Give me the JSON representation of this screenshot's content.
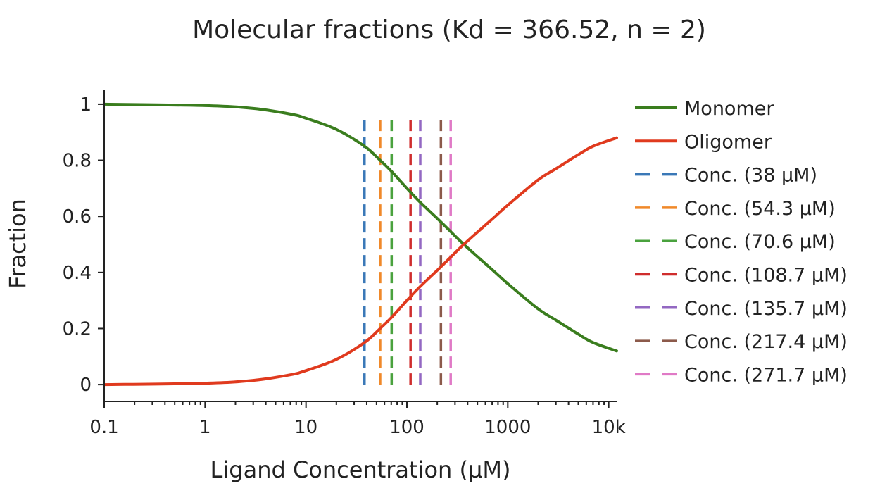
{
  "chart_data": {
    "type": "line",
    "title": "Molecular fractions (Kd = 366.52, n = 2)",
    "xlabel": "Ligand Concentration (μM)",
    "ylabel": "Fraction",
    "x_scale": "log",
    "xlim": [
      0.1,
      12000
    ],
    "ylim": [
      -0.06,
      1.05
    ],
    "x_ticks": [
      0.1,
      1,
      10,
      100,
      1000,
      10000
    ],
    "x_tick_labels": [
      "0.1",
      "1",
      "10",
      "100",
      "1000",
      "10k"
    ],
    "y_ticks": [
      0,
      0.2,
      0.4,
      0.6,
      0.8,
      1
    ],
    "y_tick_labels": [
      "0",
      "0.2",
      "0.4",
      "0.6",
      "0.8",
      "1"
    ],
    "legend_position": "right",
    "grid": false,
    "series": [
      {
        "name": "Monomer",
        "color": "#3a7d1e",
        "x": [
          0.1,
          1,
          3,
          7,
          10,
          20,
          38,
          54.3,
          70.6,
          100,
          135.7,
          217.4,
          366.52,
          700,
          1000,
          2000,
          3000,
          5000,
          7000,
          12000
        ],
        "y": [
          1.0,
          0.995,
          0.985,
          0.965,
          0.95,
          0.91,
          0.85,
          0.8,
          0.76,
          0.7,
          0.65,
          0.58,
          0.5,
          0.41,
          0.36,
          0.27,
          0.23,
          0.18,
          0.15,
          0.12
        ]
      },
      {
        "name": "Oligomer",
        "color": "#e03a1e",
        "x": [
          0.1,
          1,
          3,
          7,
          10,
          20,
          38,
          54.3,
          70.6,
          100,
          135.7,
          217.4,
          366.52,
          700,
          1000,
          2000,
          3000,
          5000,
          7000,
          12000
        ],
        "y": [
          0.0,
          0.005,
          0.015,
          0.035,
          0.05,
          0.09,
          0.15,
          0.2,
          0.24,
          0.3,
          0.35,
          0.42,
          0.5,
          0.59,
          0.64,
          0.73,
          0.77,
          0.82,
          0.85,
          0.88
        ]
      }
    ],
    "vlines": [
      {
        "name": "Conc. (38 μM)",
        "x": 38,
        "color": "#3a78b7"
      },
      {
        "name": "Conc. (54.3 μM)",
        "x": 54.3,
        "color": "#f0892a"
      },
      {
        "name": "Conc. (70.6 μM)",
        "x": 70.6,
        "color": "#4aa23e"
      },
      {
        "name": "Conc. (108.7 μM)",
        "x": 108.7,
        "color": "#cf2d2d"
      },
      {
        "name": "Conc. (135.7 μM)",
        "x": 135.7,
        "color": "#9368c2"
      },
      {
        "name": "Conc. (217.4 μM)",
        "x": 217.4,
        "color": "#8c5a4b"
      },
      {
        "name": "Conc. (271.7 μM)",
        "x": 271.7,
        "color": "#e07ac6"
      }
    ],
    "vline_range": [
      0.0,
      0.96
    ]
  }
}
